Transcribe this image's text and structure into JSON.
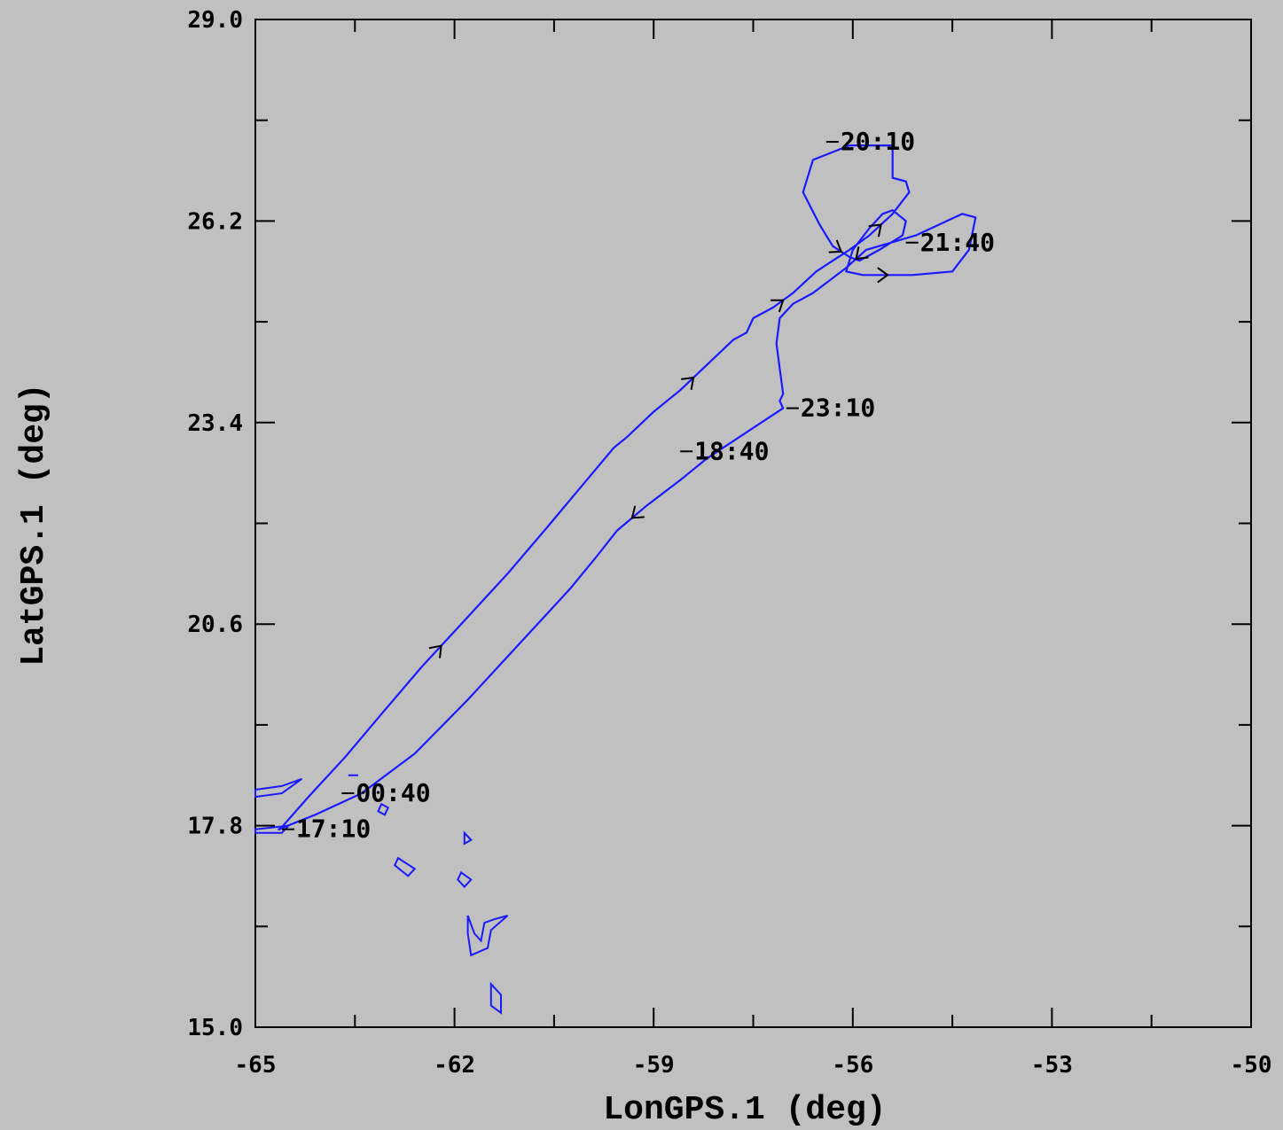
{
  "chart_data": {
    "type": "line",
    "xlabel": "LonGPS.1 (deg)",
    "ylabel": "LatGPS.1 (deg)",
    "xlim": [
      -65,
      -50
    ],
    "ylim": [
      15.0,
      29.0
    ],
    "x_ticks": [
      -65,
      -62,
      -59,
      -56,
      -53,
      -50
    ],
    "x_tick_labels": [
      "-65",
      "-62",
      "-59",
      "-56",
      "-53",
      "-50"
    ],
    "x_minor_ticks": [
      -63.5,
      -60.5,
      -57.5,
      -54.5,
      -51.5
    ],
    "y_ticks": [
      15.0,
      17.8,
      20.6,
      23.4,
      26.2,
      29.0
    ],
    "y_tick_labels": [
      "15.0",
      "17.8",
      "20.6",
      "23.4",
      "26.2",
      "29.0"
    ],
    "y_minor_ticks": [
      16.4,
      19.2,
      22.0,
      24.8,
      27.6
    ],
    "grid": false,
    "colors": {
      "track": "#1a1aff",
      "coastline": "#1a1aff",
      "background": "#c0c0c0",
      "axes": "#000000"
    },
    "series": [
      {
        "x": [
          -64.63,
          -64.2,
          -63.65,
          -63.1,
          -62.5,
          -61.9,
          -61.2,
          -60.6,
          -60.1,
          -59.6,
          -59.4,
          -59.0,
          -58.6,
          -58.2,
          -57.8,
          -57.6,
          -57.5,
          -57.2,
          -56.9,
          -56.55,
          -56.3,
          -56.05,
          -55.75,
          -55.4,
          -55.15,
          -55.2,
          -55.4,
          -55.4,
          -55.4,
          -56.05,
          -56.6,
          -56.75,
          -56.5,
          -56.3,
          -56.05,
          -55.9,
          -55.6,
          -55.25,
          -55.2,
          -55.4,
          -55.55,
          -55.75,
          -56.0,
          -56.1,
          -55.85,
          -55.1,
          -54.5,
          -54.25,
          -54.15,
          -54.35,
          -55.05,
          -55.8,
          -56.1,
          -56.6,
          -56.9,
          -57.1,
          -57.15,
          -57.1,
          -57.05,
          -57.1,
          -57.05,
          -58.2,
          -58.6,
          -59.1,
          -59.55,
          -59.85,
          -60.25,
          -61.0,
          -61.8,
          -62.6,
          -63.4,
          -64.1,
          -64.65
        ],
        "y": [
          17.75,
          18.2,
          18.75,
          19.35,
          20.0,
          20.6,
          21.3,
          21.95,
          22.5,
          23.05,
          23.2,
          23.55,
          23.85,
          24.2,
          24.55,
          24.65,
          24.85,
          25.0,
          25.2,
          25.5,
          25.65,
          25.8,
          26.0,
          26.3,
          26.6,
          26.75,
          26.8,
          26.95,
          27.25,
          27.25,
          27.05,
          26.6,
          26.15,
          25.85,
          25.7,
          25.65,
          25.8,
          26.0,
          26.2,
          26.35,
          26.3,
          26.1,
          25.8,
          25.5,
          25.45,
          25.45,
          25.5,
          25.8,
          26.25,
          26.3,
          26.0,
          25.8,
          25.55,
          25.2,
          25.05,
          24.85,
          24.5,
          24.15,
          23.8,
          23.7,
          23.6,
          22.9,
          22.6,
          22.25,
          21.9,
          21.55,
          21.1,
          20.35,
          19.55,
          18.8,
          18.25,
          17.95,
          17.75
        ]
      }
    ],
    "time_labels": [
      {
        "text": "17:10",
        "lon": -64.6,
        "lat": 17.75
      },
      {
        "text": "18:40",
        "lon": -58.6,
        "lat": 23.0
      },
      {
        "text": "20:10",
        "lon": -56.4,
        "lat": 27.3
      },
      {
        "text": "21:40",
        "lon": -55.2,
        "lat": 25.9
      },
      {
        "text": "23:10",
        "lon": -57.0,
        "lat": 23.6
      },
      {
        "text": "00:40",
        "lon": -63.7,
        "lat": 18.25
      }
    ]
  }
}
